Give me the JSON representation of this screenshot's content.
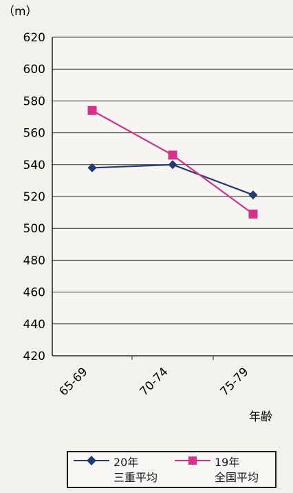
{
  "chart_data": {
    "type": "line",
    "unit_label": "（m）",
    "xlabel": "年齢",
    "categories": [
      "65-69",
      "70-74",
      "75-79"
    ],
    "ylim": [
      420,
      620
    ],
    "yticks": [
      420,
      440,
      460,
      480,
      500,
      520,
      540,
      560,
      580,
      600,
      620
    ],
    "grid": true,
    "legend_position": "bottom",
    "series": [
      {
        "name": "20年\n三重平均",
        "values": [
          538,
          540,
          521
        ],
        "color": "#243a73",
        "marker": "diamond"
      },
      {
        "name": "19年\n全国平均",
        "values": [
          574,
          546,
          509
        ],
        "color": "#d6308a",
        "marker": "square"
      }
    ]
  }
}
